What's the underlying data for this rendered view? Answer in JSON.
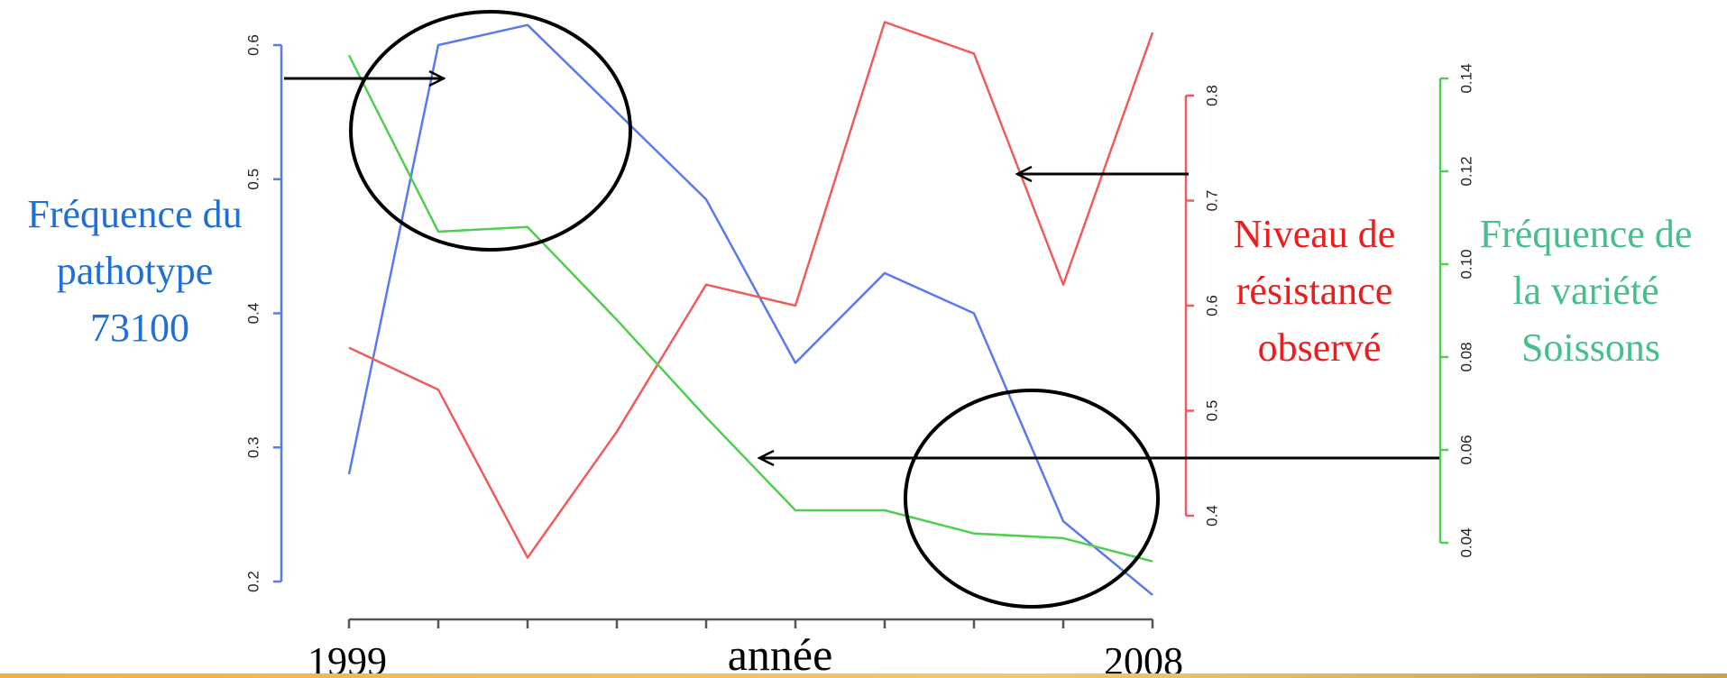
{
  "chart_data": {
    "type": "line",
    "x": [
      1999,
      2000,
      2001,
      2002,
      2003,
      2004,
      2005,
      2006,
      2007,
      2008
    ],
    "xlabel": "année",
    "x_tick_labels": [
      "1999",
      "2008"
    ],
    "series": [
      {
        "name": "Fréquence du pathotype 73100",
        "axis": "left",
        "color": "#5a79ee",
        "values": [
          0.28,
          0.6,
          0.615,
          0.55,
          0.485,
          0.363,
          0.43,
          0.4,
          0.245,
          0.19
        ],
        "ylim": [
          0.2,
          0.6
        ],
        "ticks": [
          "0.2",
          "0.3",
          "0.4",
          "0.5",
          "0.6"
        ]
      },
      {
        "name": "Niveau de résistance observé",
        "axis": "right1",
        "color": "#ef5b5b",
        "values": [
          0.56,
          0.52,
          0.36,
          0.48,
          0.62,
          0.6,
          0.87,
          0.84,
          0.62,
          0.86
        ],
        "ylim": [
          0.4,
          0.8
        ],
        "ticks": [
          "0.4",
          "0.5",
          "0.6",
          "0.7",
          "0.8"
        ]
      },
      {
        "name": "Fréquence de la variété Soissons",
        "axis": "right2",
        "color": "#4fcf4f",
        "values": [
          0.145,
          0.107,
          0.108,
          0.088,
          0.067,
          0.047,
          0.047,
          0.042,
          0.041,
          0.036
        ],
        "ylim": [
          0.04,
          0.14
        ],
        "ticks": [
          "0.04",
          "0.06",
          "0.08",
          "0.10",
          "0.12",
          "0.14"
        ]
      }
    ],
    "annotations": [
      {
        "type": "ellipse",
        "around": "2000–2002 peak"
      },
      {
        "type": "ellipse",
        "around": "2006–2008 decline"
      },
      {
        "type": "arrow",
        "from": "pathotype label",
        "to": "blue peak"
      },
      {
        "type": "arrow",
        "from": "résistance label",
        "to": "red line 2006"
      },
      {
        "type": "arrow",
        "from": "Soissons label",
        "to": "green line 2003"
      }
    ],
    "legend_labels": {
      "blue": [
        "Fréquence du",
        "pathotype",
        "73100"
      ],
      "red": [
        "Niveau de",
        "résistance",
        "observé"
      ],
      "green": [
        "Fréquence de",
        "la variété",
        "Soissons"
      ]
    },
    "colors": {
      "blue_label": "#1f6fd6",
      "red_label": "#ee1c1c",
      "green_label": "#45c08a",
      "bottom_bar": "#f2b23b"
    }
  }
}
